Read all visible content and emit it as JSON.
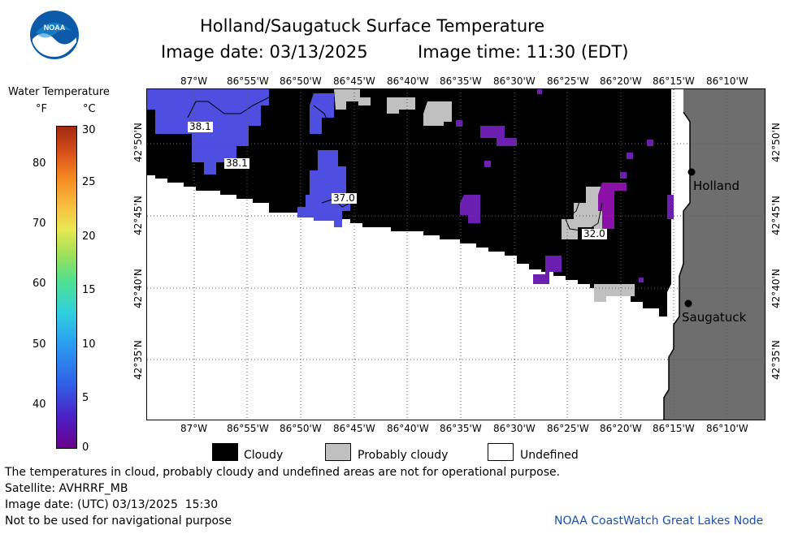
{
  "header": {
    "title": "Holland/Saugatuck Surface Temperature",
    "date_label": "Image date: 03/13/2025",
    "time_label": "Image time: 11:30 (EDT)"
  },
  "logo": {
    "text": "NOAA",
    "colors": {
      "outer": "#0c5aa8",
      "inner": "#ffffff",
      "sky": "#1c8fd6"
    }
  },
  "colorbar": {
    "title": "Water Temperature",
    "unit_f": "°F",
    "unit_c": "°C",
    "f_ticks": [
      "80",
      "70",
      "60",
      "50",
      "40"
    ],
    "c_ticks": [
      "30",
      "25",
      "20",
      "15",
      "10",
      "5",
      "0"
    ]
  },
  "map": {
    "lon_labels": [
      "87°W",
      "86°55'W",
      "86°50'W",
      "86°45'W",
      "86°40'W",
      "86°35'W",
      "86°30'W",
      "86°25'W",
      "86°20'W",
      "86°15'W",
      "86°10'W"
    ],
    "lat_labels": [
      "42°50'N",
      "42°45'N",
      "42°40'N",
      "42°35'N"
    ],
    "cities": [
      {
        "name": "Holland"
      },
      {
        "name": "Saugatuck"
      }
    ],
    "contour_labels": [
      "38.1",
      "38.1",
      "37.0",
      "32.0"
    ],
    "colors": {
      "cloudy": "#000000",
      "probably_cloudy": "#c0c0c0",
      "undefined": "#ffffff",
      "land": "#6e6e6e",
      "water_cold_blue": "#4e4ee0",
      "water_purple": "#6a1fb0",
      "water_magenta": "#8a10a8"
    }
  },
  "legend": {
    "cloudy": "Cloudy",
    "probably_cloudy": "Probably cloudy",
    "undefined": "Undefined"
  },
  "footer": {
    "note": "The temperatures in cloud, probably cloudy and undefined areas are not for operational purpose.",
    "satellite": "Satellite: AVHRRF_MB",
    "utc_date": "Image date: (UTC) 03/13/2025  15:30",
    "nav": "Not to be used for navigational purpose",
    "credit": "NOAA CoastWatch Great Lakes Node"
  }
}
